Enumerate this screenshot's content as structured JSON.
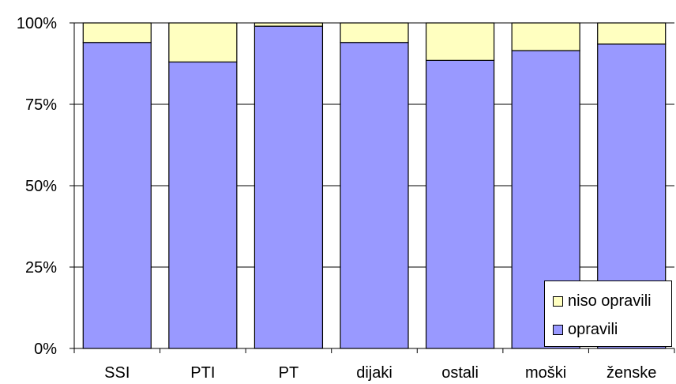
{
  "chart_data": {
    "type": "bar",
    "stacked": true,
    "categories": [
      "SSI",
      "PTI",
      "PT",
      "dijaki",
      "ostali",
      "moški",
      "ženske"
    ],
    "series": [
      {
        "name": "opravili",
        "color": "#9999ff",
        "values": [
          94,
          88,
          99,
          94,
          88.5,
          91.5,
          93.5
        ]
      },
      {
        "name": "niso opravili",
        "color": "#ffffc0",
        "values": [
          6,
          12,
          1,
          6,
          11.5,
          8.5,
          6.5
        ]
      }
    ],
    "yticks": [
      "0%",
      "25%",
      "50%",
      "75%",
      "100%"
    ],
    "ylim": [
      0,
      100
    ],
    "grid": true,
    "legend": {
      "placement": "bottom-right"
    }
  }
}
